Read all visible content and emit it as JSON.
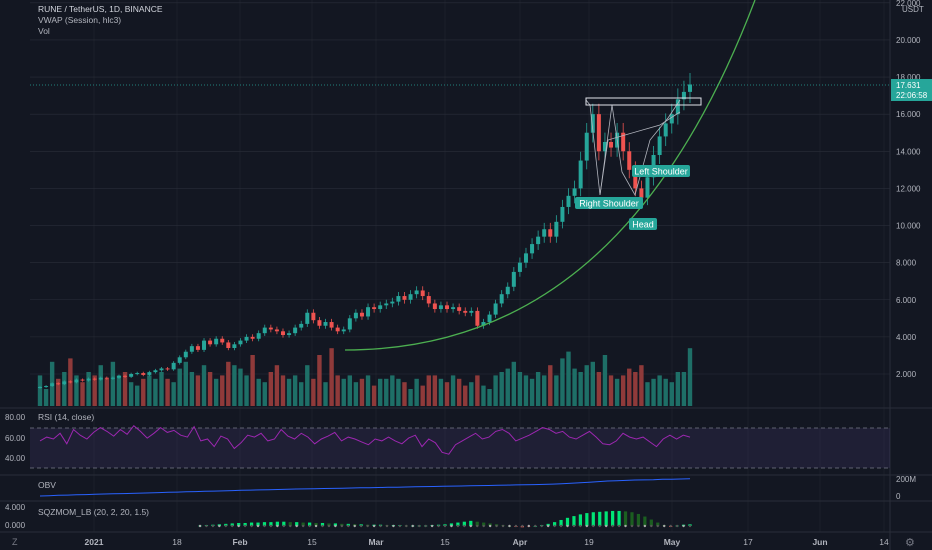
{
  "header": {
    "title": "RUNE / TetherUS, 1D, BINANCE",
    "indicator1": "VWAP (Session, hlc3)",
    "indicator2": "Vol"
  },
  "colors": {
    "background": "#131722",
    "up": "#26a69a",
    "down": "#ef5350",
    "vol_up": "#1e6f67",
    "vol_down": "#8f3a3a",
    "curve": "#4caf50",
    "rsi": "#9c27b0",
    "obv": "#2962ff",
    "grid": "#2a2e39",
    "text": "#b2b5be",
    "price_tag": "#26a69a"
  },
  "price_axis": {
    "currency": "USDT",
    "ticks": [
      "2.000",
      "4.000",
      "6.000",
      "8.000",
      "10.000",
      "12.000",
      "14.000",
      "16.000",
      "18.000",
      "20.000",
      "22.000"
    ],
    "last_price": "17.631",
    "countdown": "22:06:58"
  },
  "annotations": {
    "left_shoulder": "Left Shoulder",
    "right_shoulder": "Right Shoulder",
    "head": "Head"
  },
  "rsi_panel": {
    "title": "RSI (14, close)",
    "ticks": [
      "80.00",
      "60.00",
      "40.00"
    ]
  },
  "obv_panel": {
    "title": "OBV",
    "ticks": [
      "200M",
      "0"
    ]
  },
  "sqz_panel": {
    "title": "SQZMOM_LB (20, 2, 20, 1.5)",
    "ticks": [
      "4.000",
      "0.000"
    ]
  },
  "time_axis": {
    "labels": [
      "2021",
      "18",
      "Feb",
      "15",
      "Mar",
      "15",
      "Apr",
      "19",
      "May",
      "17",
      "Jun",
      "14"
    ]
  },
  "bottom_bar": {
    "left_icon": "Z",
    "right_icon": "gear-icon"
  },
  "chart_data": {
    "type": "candlestick",
    "y_range": [
      0,
      22
    ],
    "closes": [
      1.3,
      1.35,
      1.5,
      1.45,
      1.6,
      1.55,
      1.7,
      1.65,
      1.75,
      1.7,
      1.8,
      1.75,
      1.8,
      1.9,
      1.85,
      2.0,
      2.05,
      1.95,
      2.1,
      2.2,
      2.3,
      2.25,
      2.6,
      2.9,
      3.2,
      3.5,
      3.3,
      3.8,
      3.6,
      3.9,
      3.7,
      3.4,
      3.6,
      3.8,
      4.0,
      3.9,
      4.2,
      4.5,
      4.4,
      4.3,
      4.1,
      4.2,
      4.5,
      4.7,
      5.3,
      4.9,
      4.6,
      4.8,
      4.5,
      4.3,
      4.4,
      5.0,
      5.3,
      5.1,
      5.6,
      5.5,
      5.7,
      5.8,
      5.9,
      6.2,
      6.0,
      6.3,
      6.5,
      6.2,
      5.8,
      5.5,
      5.7,
      5.5,
      5.6,
      5.4,
      5.3,
      5.4,
      4.6,
      4.8,
      5.2,
      5.8,
      6.3,
      6.7,
      7.5,
      8.0,
      8.5,
      9.0,
      9.4,
      9.8,
      9.4,
      10.2,
      11.0,
      11.6,
      12.0,
      13.5,
      15.0,
      16.0,
      14.0,
      14.5,
      14.2,
      15.0,
      14.0,
      13.0,
      12.0,
      11.5,
      12.6,
      13.8,
      14.8,
      15.5,
      16.0,
      16.8,
      17.2,
      17.6
    ],
    "volume": [
      0.9,
      0.5,
      1.3,
      0.8,
      1.0,
      1.4,
      0.9,
      0.7,
      1.0,
      0.9,
      1.2,
      0.8,
      1.3,
      0.9,
      1.0,
      0.7,
      0.6,
      0.8,
      0.9,
      0.8,
      1.0,
      0.8,
      0.7,
      1.1,
      1.3,
      1.0,
      0.9,
      1.2,
      1.0,
      0.8,
      0.9,
      1.3,
      1.2,
      1.1,
      0.9,
      1.5,
      0.8,
      0.7,
      1.0,
      1.2,
      0.9,
      0.8,
      0.9,
      0.7,
      1.2,
      0.8,
      1.5,
      0.7,
      1.7,
      0.9,
      0.8,
      0.9,
      0.7,
      0.8,
      0.9,
      0.6,
      0.8,
      0.8,
      0.9,
      0.8,
      0.7,
      0.5,
      0.8,
      0.6,
      0.9,
      0.9,
      0.8,
      0.7,
      0.9,
      0.8,
      0.6,
      0.7,
      0.9,
      0.6,
      0.5,
      0.9,
      1.0,
      1.1,
      1.3,
      1.0,
      0.9,
      0.8,
      1.0,
      0.9,
      1.2,
      0.9,
      1.4,
      1.6,
      1.1,
      1.0,
      1.2,
      1.3,
      1.0,
      1.5,
      0.9,
      0.8,
      0.9,
      1.1,
      1.0,
      1.2,
      0.7,
      0.8,
      0.9,
      0.8,
      0.7,
      1.0,
      1.0,
      1.7
    ],
    "rsi": [
      58,
      62,
      60,
      66,
      55,
      70,
      64,
      60,
      67,
      72,
      68,
      63,
      70,
      65,
      74,
      68,
      61,
      66,
      72,
      67,
      69,
      64,
      62,
      73,
      58,
      60,
      52,
      63,
      60,
      50,
      56,
      64,
      62,
      66,
      58,
      60,
      70,
      63,
      60,
      66,
      62,
      55,
      60,
      63,
      67,
      58,
      62,
      60,
      57,
      54,
      60,
      58,
      62,
      58,
      55,
      61,
      64,
      52,
      60,
      56,
      46,
      44,
      54,
      58,
      62,
      66,
      60,
      62,
      68,
      70,
      66,
      58,
      61,
      64,
      68,
      72,
      70,
      66,
      68,
      62,
      60,
      64,
      68,
      62,
      55,
      54,
      58,
      66,
      62,
      60,
      62,
      57,
      52,
      60,
      64,
      60,
      64,
      62
    ],
    "obv": [
      0,
      4,
      8,
      10,
      14,
      16,
      20,
      24,
      26,
      28,
      30,
      34,
      36,
      40,
      44,
      46,
      50,
      52,
      56,
      58,
      60,
      64,
      68,
      70,
      72,
      74,
      76,
      80,
      82,
      84,
      86,
      88,
      90,
      92,
      94,
      96,
      98,
      100,
      102,
      104,
      106,
      108,
      110,
      112,
      114,
      116,
      118,
      120,
      122,
      124,
      126,
      128,
      130,
      132,
      134,
      136,
      140,
      144,
      150,
      156,
      162,
      170,
      176,
      180,
      184,
      188,
      190,
      192,
      196,
      198,
      200,
      202
    ],
    "sqz": [
      0.1,
      0.2,
      0.3,
      0.4,
      0.5,
      0.6,
      0.7,
      0.7,
      0.8,
      0.8,
      0.9,
      0.9,
      1.0,
      1.0,
      0.9,
      0.9,
      0.8,
      0.8,
      0.7,
      0.7,
      0.6,
      0.6,
      0.5,
      0.5,
      0.4,
      0.4,
      0.3,
      0.3,
      0.3,
      0.2,
      0.2,
      0.2,
      0.1,
      0.1,
      0.1,
      0.1,
      0.2,
      0.3,
      0.4,
      0.6,
      0.8,
      1.0,
      1.2,
      1.0,
      0.8,
      0.6,
      0.4,
      0.2,
      0.0,
      -0.2,
      -0.3,
      -0.2,
      0.0,
      0.2,
      0.5,
      0.9,
      1.4,
      1.9,
      2.3,
      2.7,
      3.0,
      3.2,
      3.3,
      3.4,
      3.5,
      3.5,
      3.4,
      3.2,
      2.8,
      2.2,
      1.5,
      0.8,
      0.2,
      -0.2,
      0.1,
      0.3,
      0.4
    ]
  }
}
